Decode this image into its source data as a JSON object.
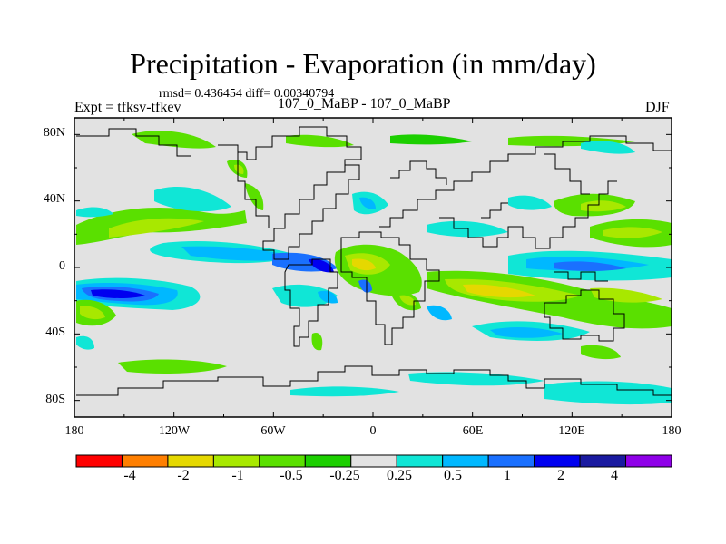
{
  "title": "Precipitation - Evaporation (in mm/day)",
  "stats": "rmsd= 0.436454  diff= 0.00340794",
  "experiment": "Expt = tfksv-tfkev",
  "period": "107_0_MaBP - 107_0_MaBP",
  "season": "DJF",
  "lat_labels": [
    "80N",
    "40N",
    "0",
    "40S",
    "80S"
  ],
  "lon_labels": [
    "180",
    "120W",
    "60W",
    "0",
    "60E",
    "120E",
    "180"
  ],
  "colorbar": {
    "colors": [
      "#ff0000",
      "#ff7f00",
      "#e5d800",
      "#a8e800",
      "#5ae000",
      "#1ccf00",
      "#e2e2e2",
      "#10e6d6",
      "#00b8ff",
      "#1a70ff",
      "#0000f0",
      "#1a1aa0",
      "#8f00e8"
    ],
    "labels": [
      "-4",
      "-2",
      "-1",
      "-0.5",
      "-0.25",
      "0.25",
      "0.5",
      "1",
      "2",
      "4"
    ]
  },
  "colors": {
    "background_field": "#e2e2e2",
    "coast": "#000000"
  }
}
